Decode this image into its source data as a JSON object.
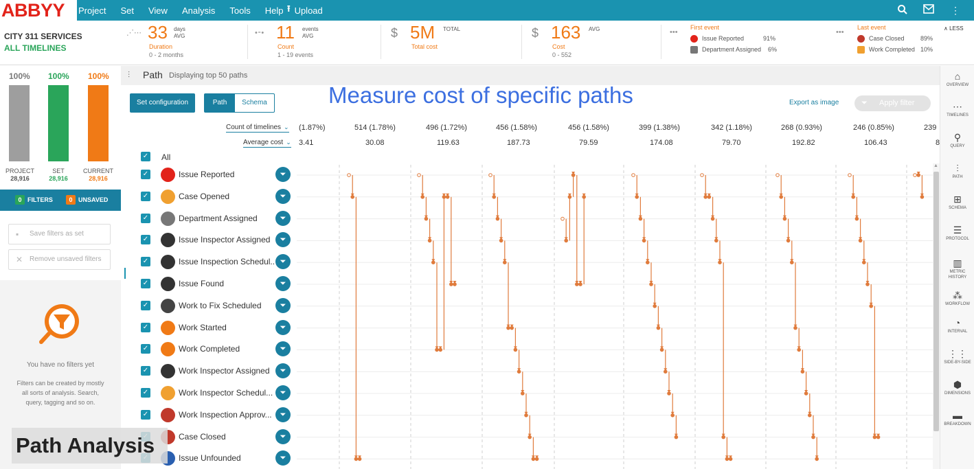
{
  "app": {
    "logo": "ABBYY"
  },
  "menu": [
    "Project",
    "Set",
    "View",
    "Analysis",
    "Tools",
    "Help"
  ],
  "upload_label": "Upload",
  "toolbar_icons": [
    "search-icon",
    "mail-icon",
    "more-vertical-icon"
  ],
  "project": {
    "title": "CITY 311 SERVICES",
    "timelines": "ALL TIMELINES"
  },
  "stats": {
    "duration": {
      "value": "33",
      "unit1": "days",
      "unit2": "AVG",
      "label": "Duration",
      "sub": "0 - 2 months"
    },
    "count": {
      "value": "11",
      "unit1": "events",
      "unit2": "AVG",
      "label": "Count",
      "sub": "1 - 19 events"
    },
    "total_cost": {
      "currency": "$",
      "value": "5M",
      "unit1": "TOTAL",
      "label": "Total cost"
    },
    "cost": {
      "currency": "$",
      "value": "163",
      "unit1": "AVG",
      "label": "Cost",
      "sub": "0 - 552"
    },
    "first_event": {
      "title": "First event",
      "rows": [
        {
          "name": "Issue Reported",
          "pct": "91%"
        },
        {
          "name": "Department Assigned",
          "pct": "6%"
        }
      ]
    },
    "last_event": {
      "title": "Last event",
      "rows": [
        {
          "name": "Case Closed",
          "pct": "89%"
        },
        {
          "name": "Work Completed",
          "pct": "10%"
        }
      ]
    },
    "less": "LESS"
  },
  "sidebar": {
    "bars": [
      {
        "pct": "100%",
        "name": "PROJECT",
        "count": "28,916",
        "color": "#9e9e9e"
      },
      {
        "pct": "100%",
        "name": "SET",
        "count": "28,916",
        "color": "#2aa55a"
      },
      {
        "pct": "100%",
        "name": "CURRENT",
        "count": "28,916",
        "color": "#f07a16"
      }
    ],
    "filters_count": "0",
    "filters_label": "FILTERS",
    "unsaved_count": "0",
    "unsaved_label": "UNSAVED",
    "save_filters": "Save filters as set",
    "remove_unsaved": "Remove unsaved filters",
    "no_filters": "You have no filters yet",
    "no_filters_desc": "Filters can be created by mostly all sorts of analysis. Search, query, tagging and so on."
  },
  "path": {
    "title": "Path",
    "subtitle": "Displaying top 50 paths",
    "set_configuration": "Set configuration",
    "tab_path": "Path",
    "tab_schema": "Schema",
    "headline": "Measure cost of specific paths",
    "export": "Export as image",
    "apply_filter": "Apply filter",
    "metric1": "Count of timelines",
    "metric2": "Average cost",
    "counts": [
      "(1.87%)",
      "514 (1.78%)",
      "496 (1.72%)",
      "456 (1.58%)",
      "456 (1.58%)",
      "399 (1.38%)",
      "342 (1.18%)",
      "268 (0.93%)",
      "246 (0.85%)",
      "239"
    ],
    "costs": [
      "3.41",
      "30.08",
      "119.63",
      "187.73",
      "79.59",
      "174.08",
      "79.70",
      "192.82",
      "106.43",
      "8"
    ],
    "all_label": "All",
    "events": [
      {
        "label": "Issue Reported",
        "icon": "exclamation-icon"
      },
      {
        "label": "Case Opened",
        "icon": "folder-open-icon"
      },
      {
        "label": "Department Assigned",
        "icon": "people-icon"
      },
      {
        "label": "Issue Inspector Assigned",
        "icon": "inspector-icon"
      },
      {
        "label": "Issue Inspection Schedul...",
        "icon": "clock-icon"
      },
      {
        "label": "Issue Found",
        "icon": "alert-bubble-icon"
      },
      {
        "label": "Work to Fix Scheduled",
        "icon": "worker-icon"
      },
      {
        "label": "Work Started",
        "icon": "cone-icon"
      },
      {
        "label": "Work Completed",
        "icon": "cone-check-icon"
      },
      {
        "label": "Work Inspector Assigned",
        "icon": "hand-point-icon"
      },
      {
        "label": "Work Inspector Schedul...",
        "icon": "calendar-icon"
      },
      {
        "label": "Work Inspection Approv...",
        "icon": "clipboard-check-icon"
      },
      {
        "label": "Case Closed",
        "icon": "close-circle-icon"
      },
      {
        "label": "Issue Unfounded",
        "icon": "question-icon"
      }
    ]
  },
  "rightnav": [
    {
      "label": "OVERVIEW",
      "icon": "home-icon"
    },
    {
      "label": "TIMELINES",
      "icon": "timelines-icon"
    },
    {
      "label": "QUERY",
      "icon": "query-icon"
    },
    {
      "label": "PATH",
      "icon": "path-icon"
    },
    {
      "label": "SCHEMA",
      "icon": "schema-icon"
    },
    {
      "label": "PROTOCOL",
      "icon": "protocol-icon"
    },
    {
      "label": "METRIC HISTORY",
      "icon": "metric-history-icon"
    },
    {
      "label": "WORKFLOW",
      "icon": "workflow-icon"
    },
    {
      "label": "INTERVAL",
      "icon": "interval-icon"
    },
    {
      "label": "SIDE-BY-SIDE",
      "icon": "side-by-side-icon"
    },
    {
      "label": "DIMENSIONS",
      "icon": "dimensions-icon"
    },
    {
      "label": "BREAKDOWN",
      "icon": "breakdown-icon"
    }
  ],
  "caption": "Path Analysis",
  "colors": {
    "accent": "#1a93b0",
    "orange": "#f07a16",
    "green": "#2aa55a",
    "headline": "#3c6fe0"
  }
}
